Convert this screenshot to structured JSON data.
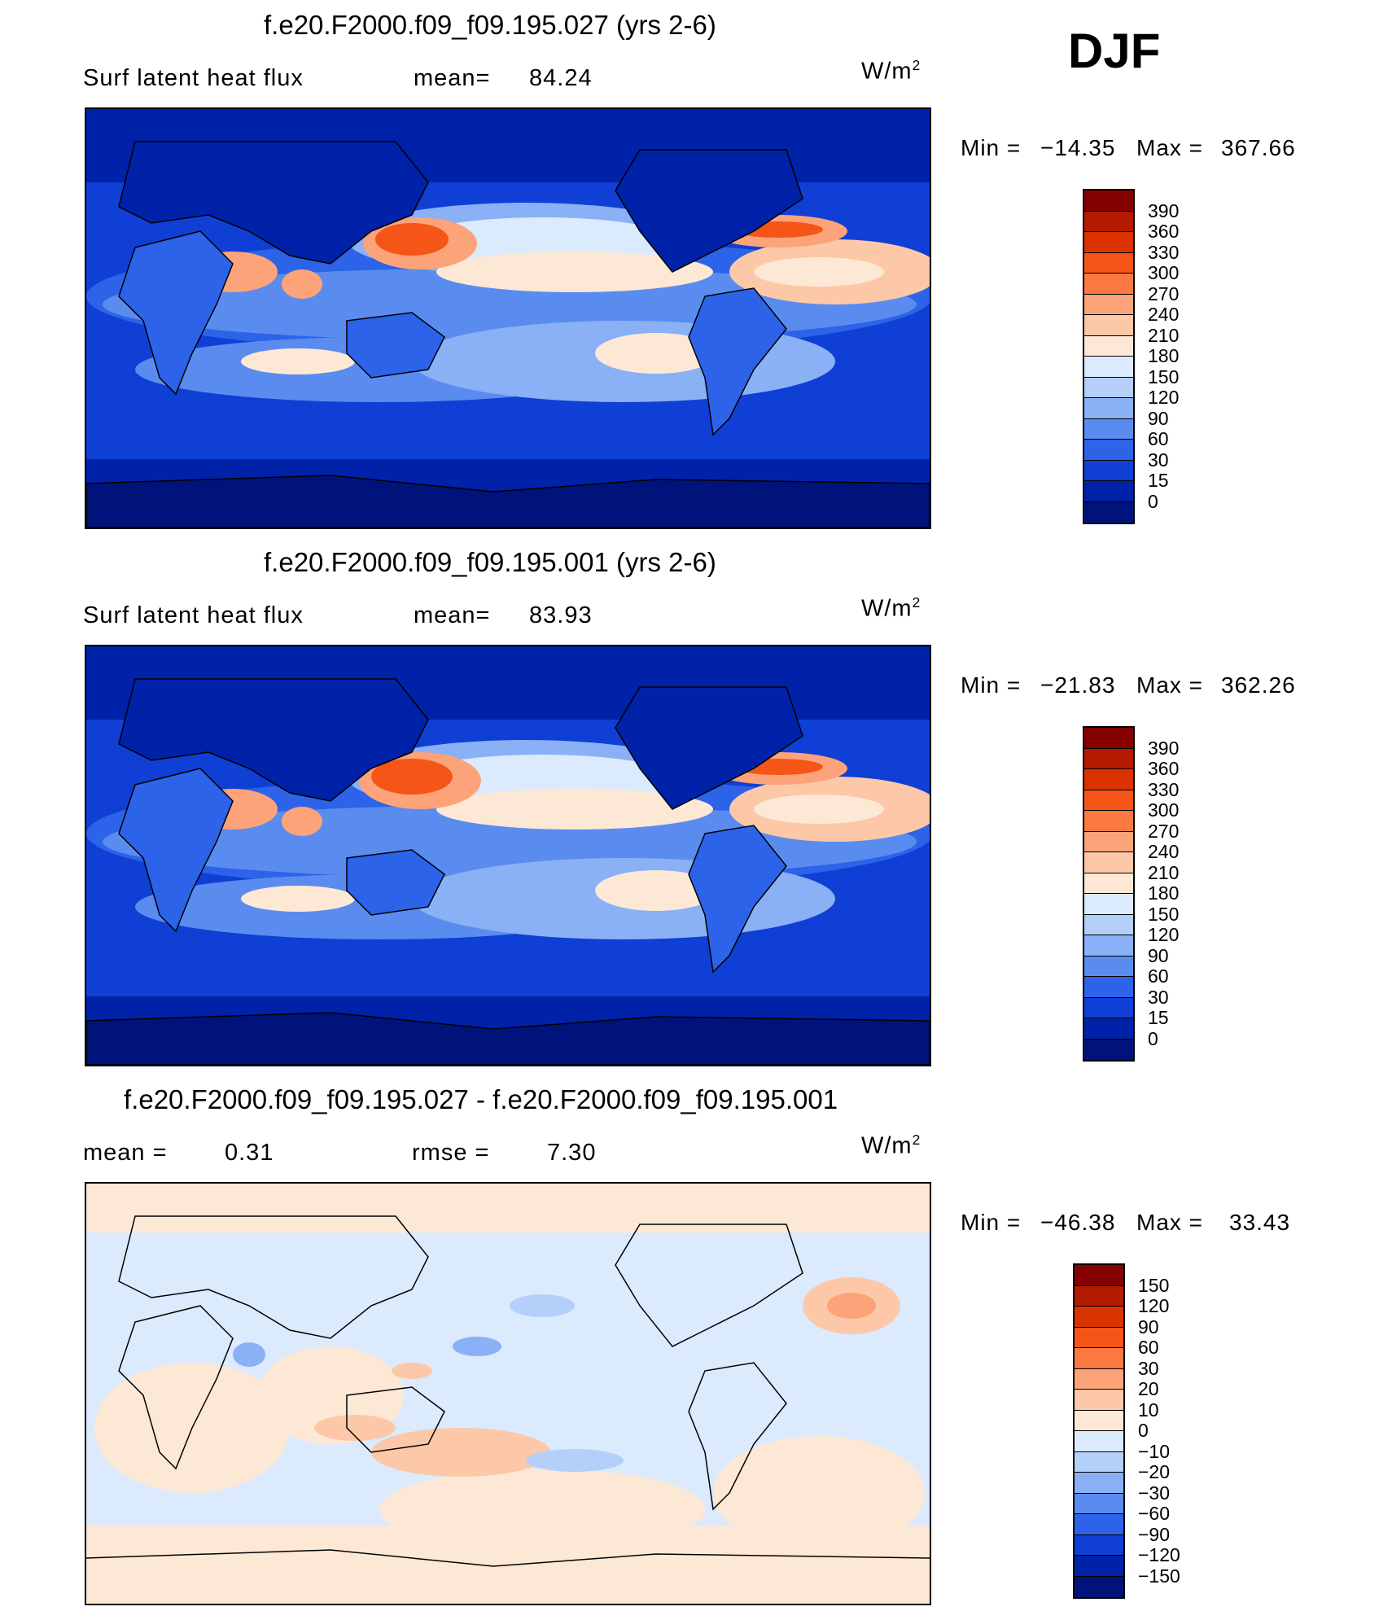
{
  "season": "DJF",
  "units": "W/m",
  "units_sup": "2",
  "panels": [
    {
      "title": "f.e20.F2000.f09_f09.195.027 (yrs 2-6)",
      "left_label": "Surf  latent  heat  flux",
      "stat_label": "mean=",
      "stat_value": "84.24",
      "min_label": "Min  =",
      "min_value": "−14.35",
      "max_label": "Max  =",
      "max_value": "367.66"
    },
    {
      "title": "f.e20.F2000.f09_f09.195.001 (yrs 2-6)",
      "left_label": "Surf  latent  heat  flux",
      "stat_label": "mean=",
      "stat_value": "83.93",
      "min_label": "Min  =",
      "min_value": "−21.83",
      "max_label": "Max  =",
      "max_value": "362.26"
    },
    {
      "title": "f.e20.F2000.f09_f09.195.027 - f.e20.F2000.f09_f09.195.001",
      "left_label": "mean  =",
      "left_value": "0.31",
      "stat_label": "rmse  =",
      "stat_value": "7.30",
      "min_label": "Min  =",
      "min_value": "−46.38",
      "max_label": "Max  =",
      "max_value": "33.43"
    }
  ],
  "chart_data": [
    {
      "type": "heatmap",
      "title": "f.e20.F2000.f09_f09.195.027 (yrs 2-6)",
      "variable": "Surf latent heat flux",
      "mean": 84.24,
      "min": -14.35,
      "max": 367.66,
      "colorbar_levels": [
        "390",
        "360",
        "330",
        "300",
        "270",
        "240",
        "210",
        "180",
        "150",
        "120",
        "90",
        "60",
        "30",
        "15",
        "0"
      ],
      "colorbar_colors": [
        "#850000",
        "#b31a00",
        "#db3300",
        "#f55516",
        "#fc7a42",
        "#fca37a",
        "#fcc8a8",
        "#fde8d6",
        "#dbeafc",
        "#b4d0fa",
        "#8ab0f5",
        "#5a8cf0",
        "#2d63e8",
        "#0f3fd4",
        "#0022a8",
        "#00137a"
      ]
    },
    {
      "type": "heatmap",
      "title": "f.e20.F2000.f09_f09.195.001 (yrs 2-6)",
      "variable": "Surf latent heat flux",
      "mean": 83.93,
      "min": -21.83,
      "max": 362.26,
      "colorbar_levels": [
        "390",
        "360",
        "330",
        "300",
        "270",
        "240",
        "210",
        "180",
        "150",
        "120",
        "90",
        "60",
        "30",
        "15",
        "0"
      ],
      "colorbar_colors": [
        "#850000",
        "#b31a00",
        "#db3300",
        "#f55516",
        "#fc7a42",
        "#fca37a",
        "#fcc8a8",
        "#fde8d6",
        "#dbeafc",
        "#b4d0fa",
        "#8ab0f5",
        "#5a8cf0",
        "#2d63e8",
        "#0f3fd4",
        "#0022a8",
        "#00137a"
      ]
    },
    {
      "type": "heatmap",
      "title": "f.e20.F2000.f09_f09.195.027 - f.e20.F2000.f09_f09.195.001",
      "mean": 0.31,
      "rmse": 7.3,
      "min": -46.38,
      "max": 33.43,
      "colorbar_levels": [
        "150",
        "120",
        "90",
        "60",
        "30",
        "20",
        "10",
        "0",
        "−10",
        "−20",
        "−30",
        "−60",
        "−90",
        "−120",
        "−150"
      ],
      "colorbar_colors": [
        "#850000",
        "#b31a00",
        "#db3300",
        "#f55516",
        "#fc7a42",
        "#fca37a",
        "#fcc8a8",
        "#fde8d6",
        "#dbeafc",
        "#b4d0fa",
        "#8ab0f5",
        "#5a8cf0",
        "#2d63e8",
        "#0f3fd4",
        "#0022a8",
        "#00137a"
      ]
    }
  ]
}
